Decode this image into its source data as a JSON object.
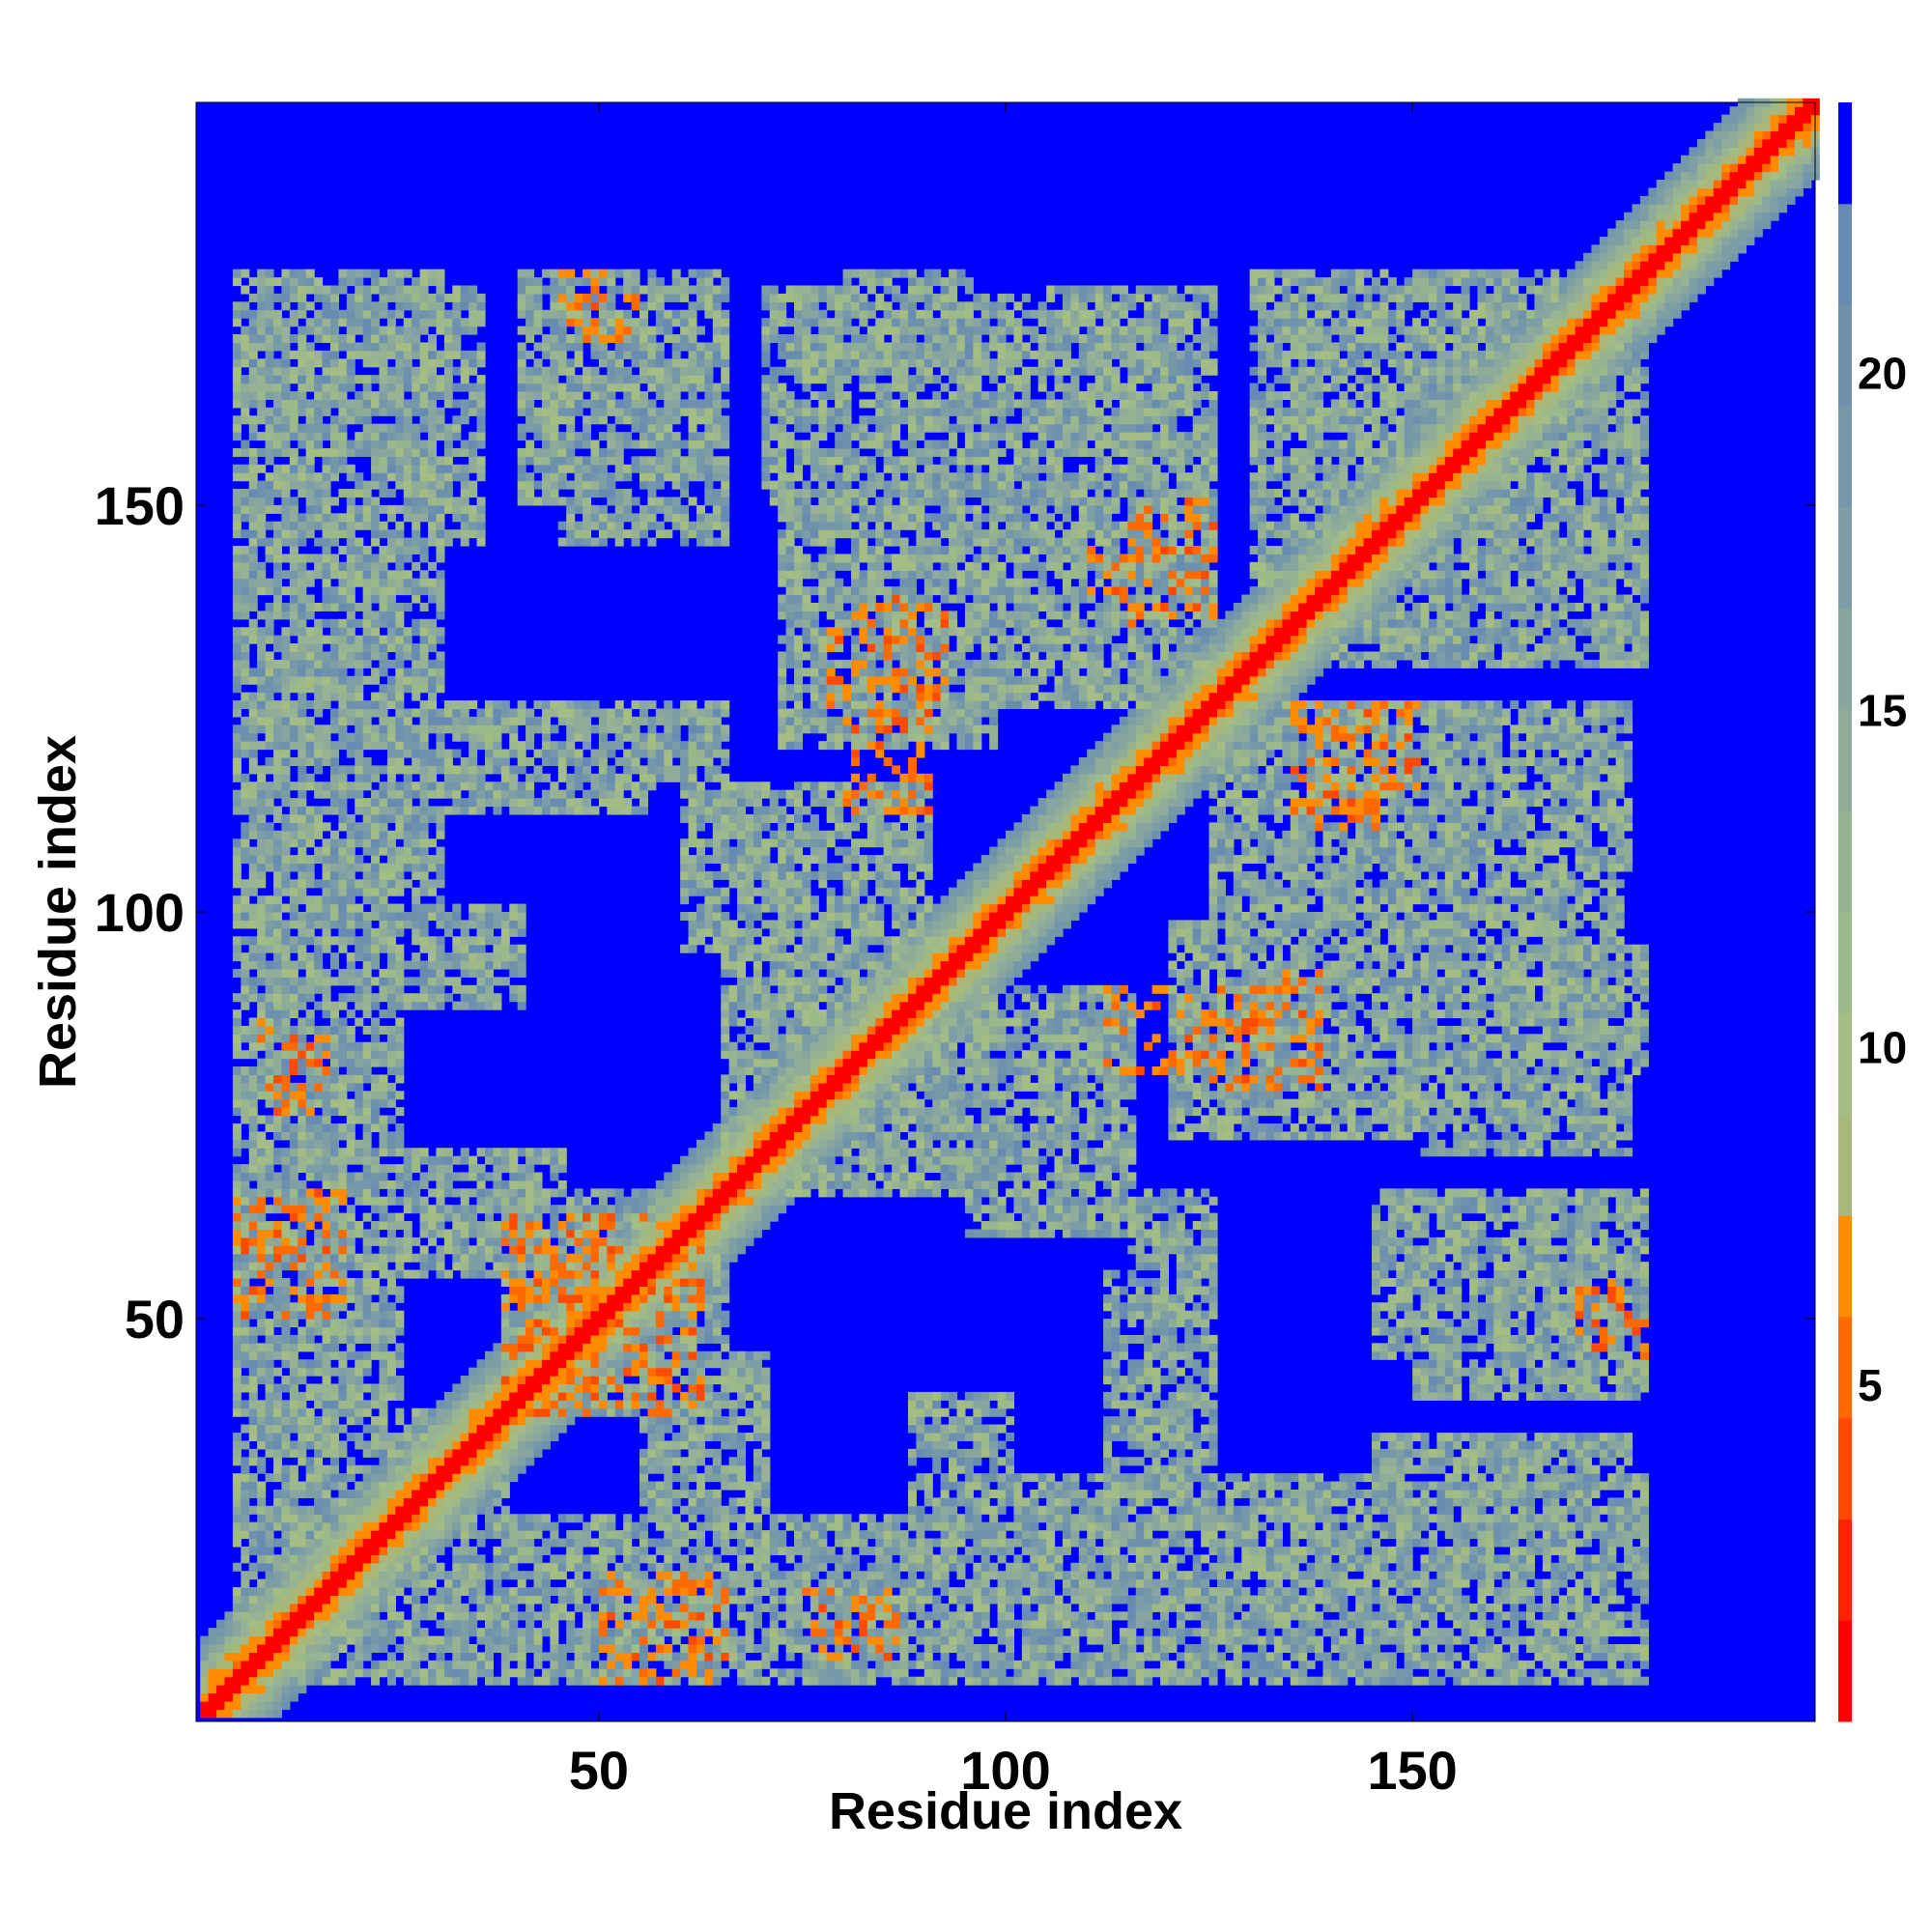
{
  "chart_data": {
    "type": "heatmap",
    "title": "",
    "xlabel": "Residue index",
    "ylabel": "Residue index",
    "xlim": [
      1,
      199
    ],
    "ylim": [
      1,
      199
    ],
    "x_ticks": [
      50,
      100,
      150
    ],
    "y_ticks": [
      50,
      100,
      150
    ],
    "x_tick_labels": [
      "50",
      "100",
      "150"
    ],
    "y_tick_labels": [
      "50",
      "100",
      "150"
    ],
    "colorbar": {
      "range": [
        0,
        24
      ],
      "ticks": [
        5,
        10,
        15,
        20
      ],
      "tick_labels": [
        "5",
        "10",
        "15",
        "20"
      ],
      "levels": [
        {
          "max": 1.5,
          "color": "#ff0000"
        },
        {
          "max": 3,
          "color": "#ff2200"
        },
        {
          "max": 4.5,
          "color": "#ff4b00"
        },
        {
          "max": 6,
          "color": "#ff6a00"
        },
        {
          "max": 7.5,
          "color": "#ff8c00"
        },
        {
          "max": 9,
          "color": "#a8b87a"
        },
        {
          "max": 10.5,
          "color": "#a4bd84"
        },
        {
          "max": 12,
          "color": "#9cb98a"
        },
        {
          "max": 13.5,
          "color": "#97b393"
        },
        {
          "max": 15,
          "color": "#8fac98"
        },
        {
          "max": 16.5,
          "color": "#88a59f"
        },
        {
          "max": 18,
          "color": "#7e9ea6"
        },
        {
          "max": 19.5,
          "color": "#7597aa"
        },
        {
          "max": 21,
          "color": "#6e91ae"
        },
        {
          "max": 22.5,
          "color": "#688cb1"
        },
        {
          "max": 24,
          "color": "#0000ff"
        }
      ]
    },
    "background_value": 24,
    "background_color": "#0000ff",
    "diagonal_band": {
      "core": 1,
      "near": 4,
      "halo": 9
    },
    "contact_regions": [
      {
        "x": [
          5,
          12
        ],
        "y": [
          5,
          12
        ]
      },
      {
        "x": [
          5,
          38
        ],
        "y": [
          5,
          38
        ]
      },
      {
        "x": [
          5,
          35
        ],
        "y": [
          150,
          176
        ]
      },
      {
        "x": [
          40,
          62
        ],
        "y": [
          150,
          178
        ]
      },
      {
        "x": [
          70,
          85
        ],
        "y": [
          150,
          176
        ]
      },
      {
        "x": [
          105,
          125
        ],
        "y": [
          145,
          176
        ]
      },
      {
        "x": [
          130,
          175
        ],
        "y": [
          140,
          178
        ]
      },
      {
        "x": [
          72,
          98
        ],
        "y": [
          120,
          150
        ]
      },
      {
        "x": [
          98,
          118
        ],
        "y": [
          130,
          160
        ]
      },
      {
        "x": [
          8,
          55
        ],
        "y": [
          112,
          125
        ]
      },
      {
        "x": [
          5,
          20
        ],
        "y": [
          40,
          130
        ]
      },
      {
        "x": [
          60,
          90
        ],
        "y": [
          95,
          115
        ]
      },
      {
        "x": [
          125,
          175
        ],
        "y": [
          95,
          125
        ]
      },
      {
        "x": [
          125,
          178
        ],
        "y": [
          80,
          95
        ]
      },
      {
        "x": [
          5,
          45
        ],
        "y": [
          55,
          70
        ]
      },
      {
        "x": [
          38,
          65
        ],
        "y": [
          40,
          65
        ]
      },
      {
        "x": [
          70,
          110
        ],
        "y": [
          65,
          90
        ]
      },
      {
        "x": [
          115,
          125
        ],
        "y": [
          45,
          65
        ]
      },
      {
        "x": [
          145,
          178
        ],
        "y": [
          45,
          65
        ]
      },
      {
        "x": [
          20,
          90
        ],
        "y": [
          5,
          25
        ]
      },
      {
        "x": [
          100,
          178
        ],
        "y": [
          5,
          30
        ]
      },
      {
        "x": [
          145,
          168
        ],
        "y": [
          15,
          35
        ]
      },
      {
        "x": [
          88,
          100
        ],
        "y": [
          20,
          40
        ]
      }
    ],
    "orange_contacts": [
      {
        "x": [
          8,
          14
        ],
        "y": [
          76,
          86
        ]
      },
      {
        "x": [
          6,
          14
        ],
        "y": [
          54,
          62
        ]
      },
      {
        "x": [
          40,
          62
        ],
        "y": [
          38,
          62
        ]
      },
      {
        "x": [
          125,
          138
        ],
        "y": [
          78,
          92
        ]
      },
      {
        "x": [
          80,
          90
        ],
        "y": [
          112,
          128
        ]
      },
      {
        "x": [
          115,
          125
        ],
        "y": [
          140,
          150
        ]
      },
      {
        "x": [
          135,
          145
        ],
        "y": [
          110,
          125
        ]
      },
      {
        "x": [
          170,
          175
        ],
        "y": [
          48,
          54
        ]
      },
      {
        "x": [
          50,
          65
        ],
        "y": [
          5,
          18
        ]
      },
      {
        "x": [
          75,
          85
        ],
        "y": [
          8,
          16
        ]
      },
      {
        "x": [
          45,
          50
        ],
        "y": [
          172,
          178
        ]
      }
    ]
  }
}
